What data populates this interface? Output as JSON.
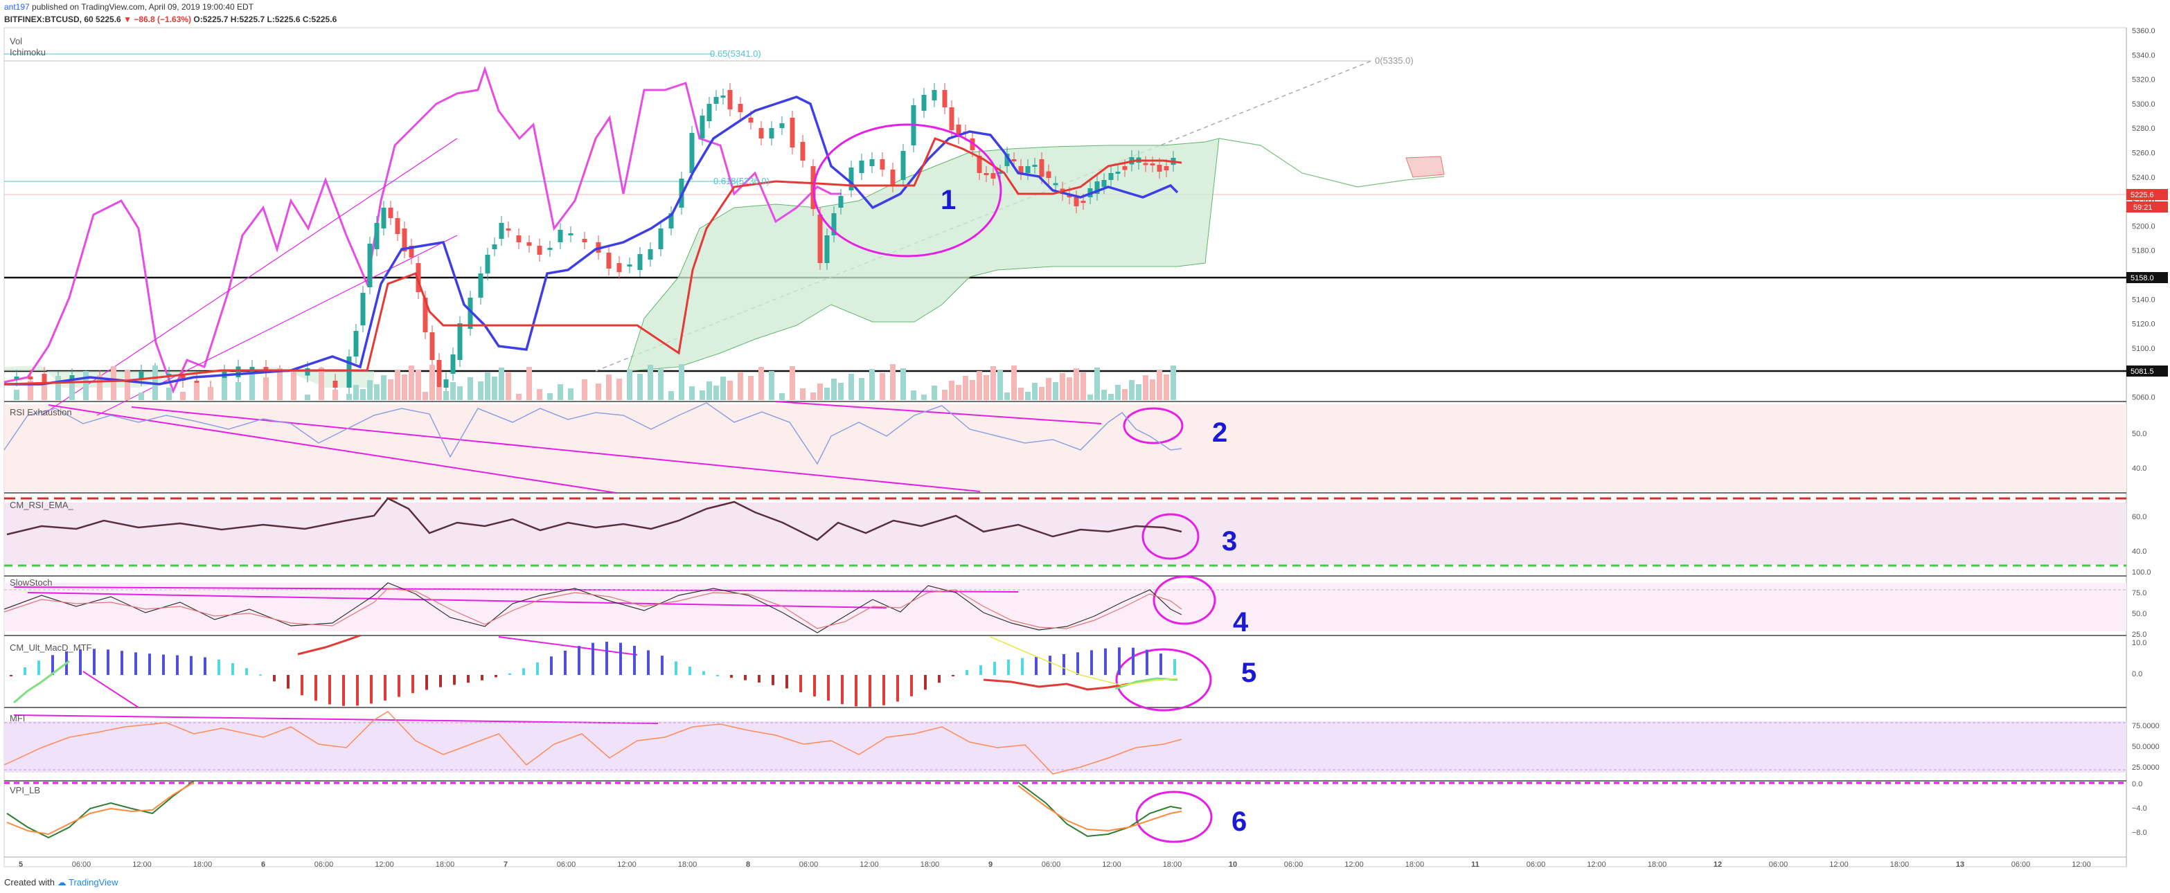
{
  "header": {
    "author": "ant197",
    "published_text": "published on TradingView.com, April 09, 2019 19:00:40 EDT",
    "symbol": "BITFINEX:BTCUSD, 60",
    "last": "5225.6",
    "change": "−86.8 (−1.63%)",
    "o": "O:5225.7",
    "h": "H:5225.7",
    "l": "L:5225.6",
    "c": "C:5225.6",
    "down_arrow": "▼"
  },
  "panes": {
    "vol": "Vol",
    "ichimoku": "Ichimoku",
    "rsi": "RSI Exhaustion",
    "cmrsi": "CM_RSI_EMA_",
    "stoch": "SlowStoch",
    "macd": "CM_Ult_MacD_MTF",
    "mfi": "MFI",
    "vpi": "VPI_LB"
  },
  "fib": {
    "top": "0.65(5341.0)",
    "mid": "0.618(5236.0)",
    "end": "0(5335.0)"
  },
  "price_axis": {
    "main": [
      "5360.0",
      "5340.0",
      "5320.0",
      "5300.0",
      "5280.0",
      "5260.0",
      "5240.0",
      "5220.0",
      "5200.0",
      "5180.0",
      "5160.0",
      "5140.0",
      "5120.0",
      "5100.0",
      "5080.0",
      "5060.0"
    ],
    "rsi": [
      "50.0",
      "40.0"
    ],
    "cmrsi": [
      "60.0",
      "40.0"
    ],
    "stoch": [
      "100.0",
      "75.0",
      "50.0",
      "25.0"
    ],
    "macd": [
      "10.0",
      "0.0"
    ],
    "mfi": [
      "75.0000",
      "50.0000",
      "25.0000"
    ],
    "vpi": [
      "0.0",
      "−4.0",
      "−8.0"
    ]
  },
  "price_tags": {
    "current": "5225.6",
    "timer": "59:21",
    "level1": "5158.0",
    "level2": "5081.5"
  },
  "time_axis": [
    "5",
    "06:00",
    "12:00",
    "18:00",
    "6",
    "06:00",
    "12:00",
    "18:00",
    "7",
    "06:00",
    "12:00",
    "18:00",
    "8",
    "06:00",
    "12:00",
    "18:00",
    "9",
    "06:00",
    "12:00",
    "18:00",
    "10",
    "06:00",
    "12:00",
    "18:00",
    "11",
    "06:00",
    "12:00",
    "18:00",
    "12",
    "06:00",
    "12:00",
    "18:00",
    "13",
    "06:00",
    "12:00"
  ],
  "annotations": [
    "1",
    "2",
    "3",
    "4",
    "5",
    "6"
  ],
  "footer": {
    "created_with": "Created with",
    "brand": "TradingView",
    "logo_icon": "tradingview-logo-icon"
  },
  "colors": {
    "up": "#26a69a",
    "down": "#ef5350",
    "marker": "#e61ee6",
    "annotation": "#1a1ad4",
    "kijun": "#3e3ee6",
    "tenkan": "#e53935"
  }
}
